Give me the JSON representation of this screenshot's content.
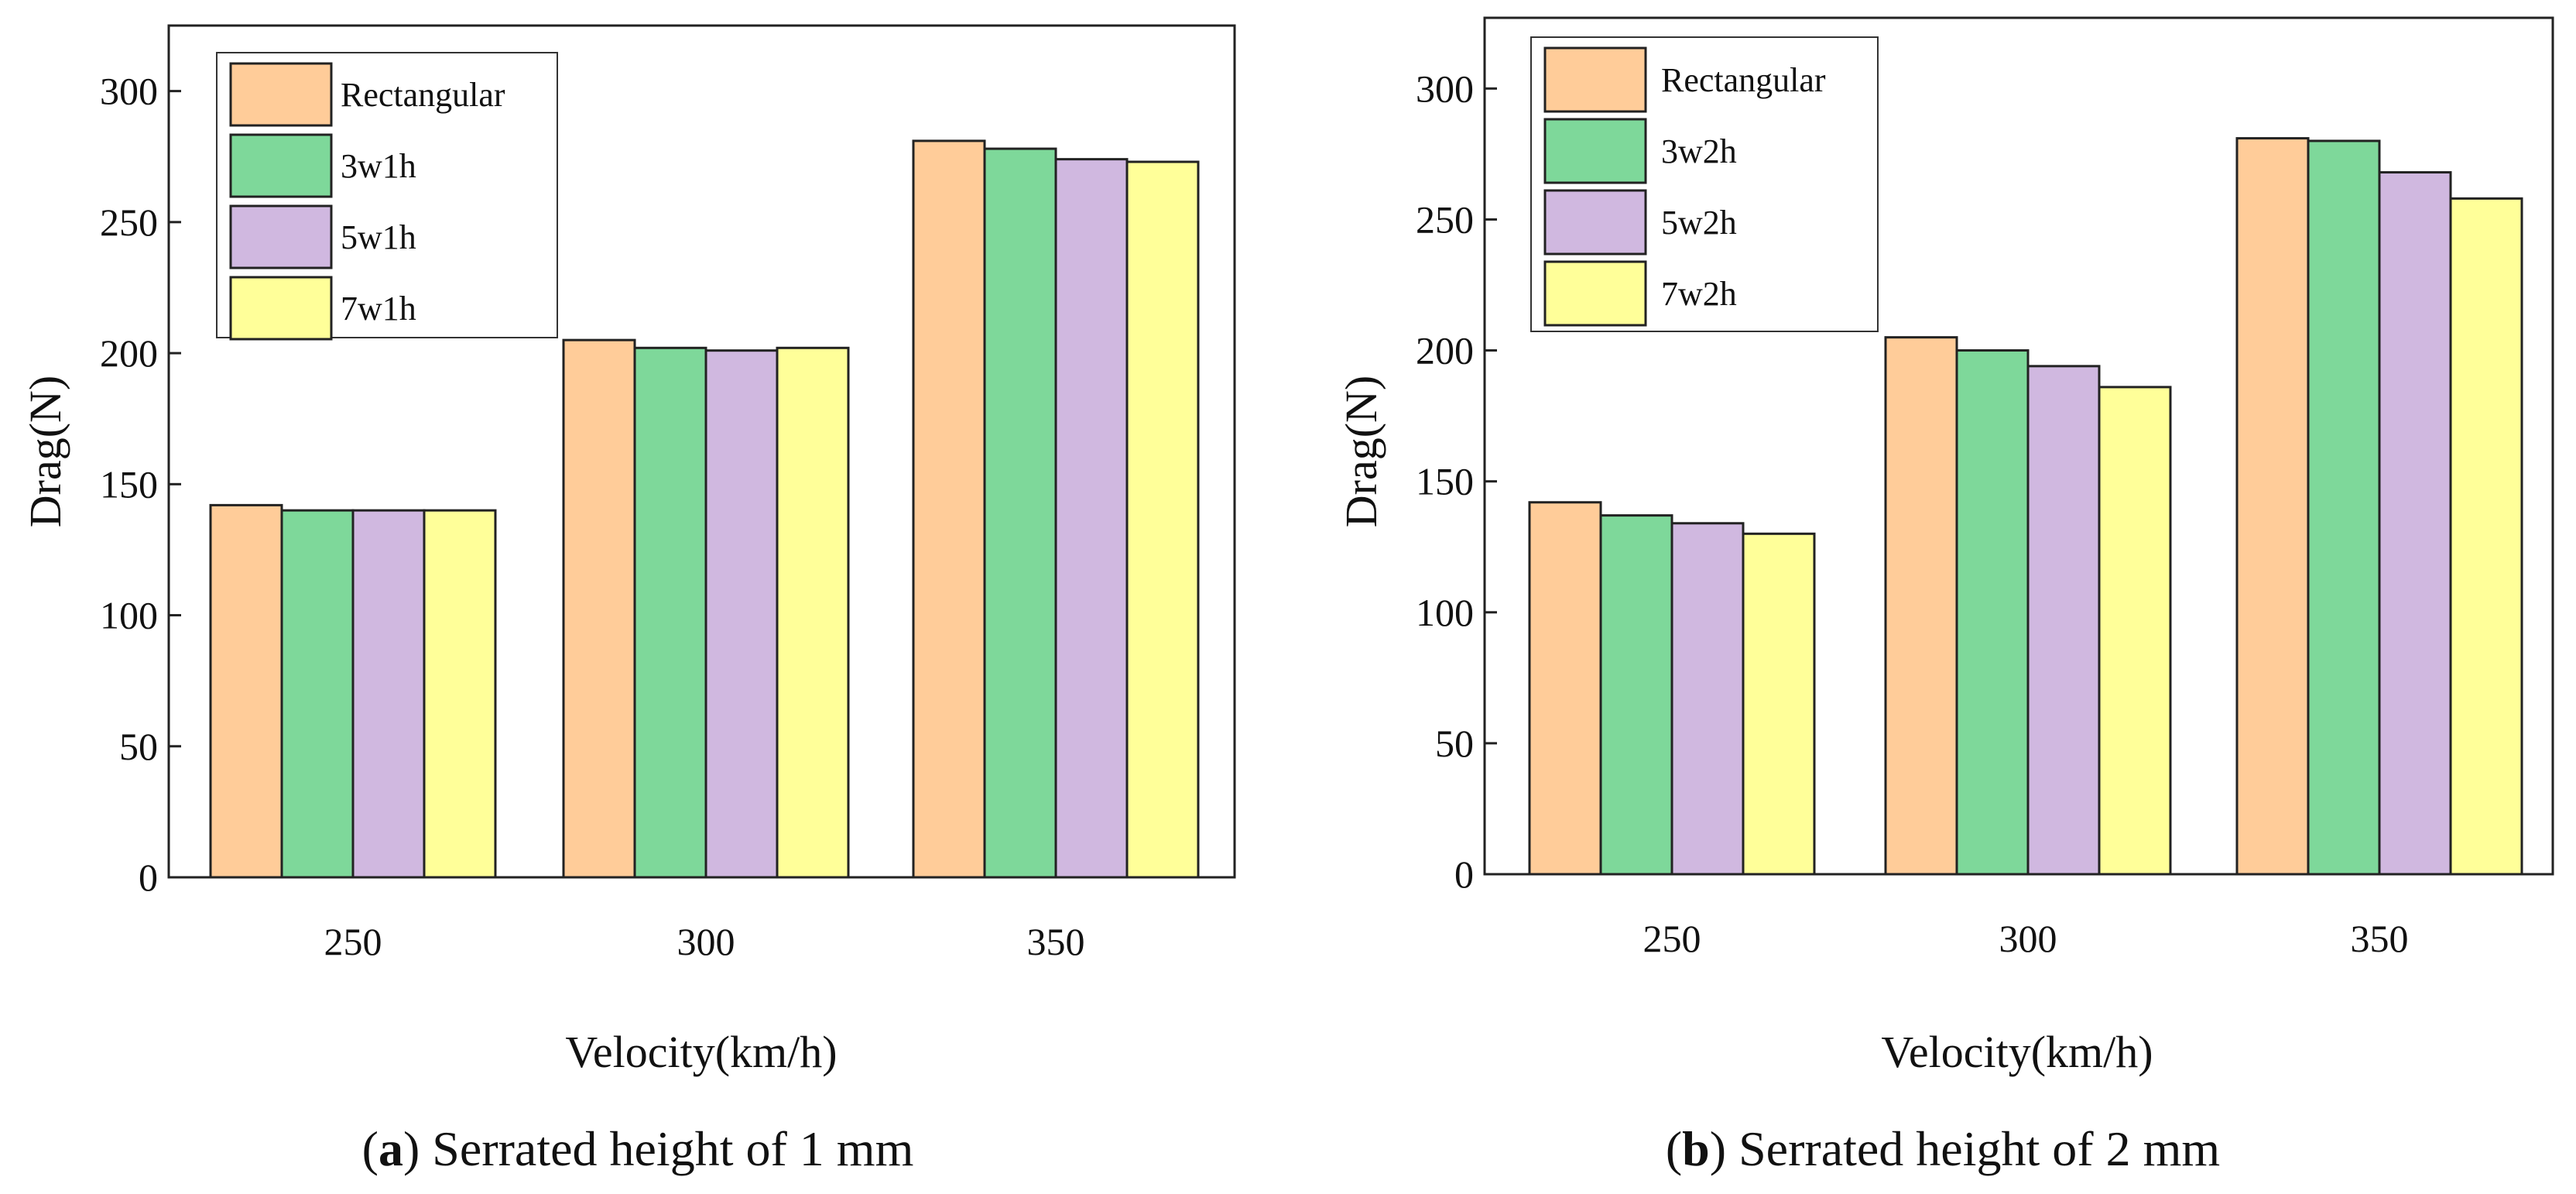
{
  "chart_data": [
    {
      "type": "bar",
      "panel": "a",
      "caption_letter": "a",
      "caption_text": "Serrated height of 1 mm",
      "xlabel": "Velocity(km/h)",
      "ylabel": "Drag(N)",
      "categories": [
        "250",
        "300",
        "350"
      ],
      "ylim": [
        0,
        325
      ],
      "yticks": [
        0,
        50,
        100,
        150,
        200,
        250,
        300
      ],
      "legend_position": "top-left",
      "grid": false,
      "series": [
        {
          "name": "Rectangular",
          "color": "#FFCC99",
          "values": [
            142,
            205,
            281
          ]
        },
        {
          "name": "3w1h",
          "color": "#7ED89A",
          "values": [
            140,
            202,
            278
          ]
        },
        {
          "name": "5w1h",
          "color": "#D0B8E0",
          "values": [
            140,
            201,
            274
          ]
        },
        {
          "name": "7w1h",
          "color": "#FFFF99",
          "values": [
            140,
            202,
            273
          ]
        }
      ]
    },
    {
      "type": "bar",
      "panel": "b",
      "caption_letter": "b",
      "caption_text": "Serrated height of 2 mm",
      "xlabel": "Velocity(km/h)",
      "ylabel": "Drag(N)",
      "categories": [
        "250",
        "300",
        "350"
      ],
      "ylim": [
        0,
        327
      ],
      "yticks": [
        0,
        50,
        100,
        150,
        200,
        250,
        300
      ],
      "legend_position": "top-left",
      "grid": false,
      "series": [
        {
          "name": "Rectangular",
          "color": "#FFCC99",
          "values": [
            142,
            205,
            281
          ]
        },
        {
          "name": "3w2h",
          "color": "#7ED89A",
          "values": [
            137,
            200,
            280
          ]
        },
        {
          "name": "5w2h",
          "color": "#D0B8E0",
          "values": [
            134,
            194,
            268
          ]
        },
        {
          "name": "7w2h",
          "color": "#FFFF99",
          "values": [
            130,
            186,
            258
          ]
        }
      ]
    }
  ]
}
